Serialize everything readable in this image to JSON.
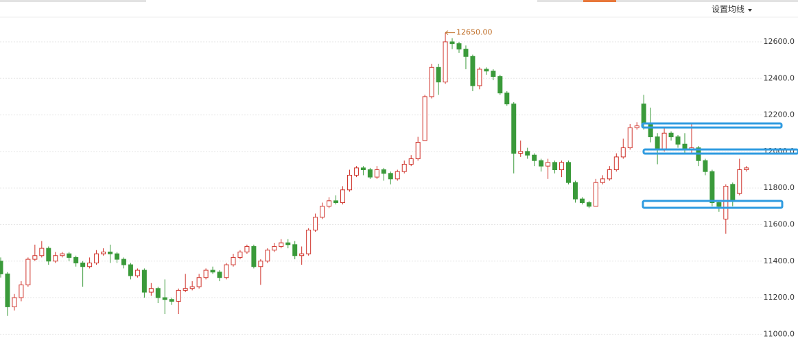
{
  "chart_data": {
    "type": "candlestick",
    "button": "设置均线",
    "max_label": "12650.00",
    "up_color": "#d0342c",
    "down_color": "#3a9a3a",
    "ylim": [
      10930,
      12735
    ],
    "yticks": [
      {
        "value": 11000,
        "label": "11000.0"
      },
      {
        "value": 11200,
        "label": "11200.0"
      },
      {
        "value": 11400,
        "label": "11400.0"
      },
      {
        "value": 11600,
        "label": "11600.0"
      },
      {
        "value": 11800,
        "label": "11800.0"
      },
      {
        "value": 12000,
        "label": "12000.0"
      },
      {
        "value": 12200,
        "label": "12200.0"
      },
      {
        "value": 12400,
        "label": "12400.0"
      },
      {
        "value": 12600,
        "label": "12600.0"
      }
    ],
    "grid": true,
    "open": [
      11400,
      11330,
      11150,
      11200,
      11270,
      11410,
      11430,
      11470,
      11400,
      11430,
      11440,
      11420,
      11390,
      11370,
      11390,
      11440,
      11450,
      11440,
      11410,
      11380,
      11320,
      11350,
      11230,
      11250,
      11200,
      11190,
      11180,
      11240,
      11250,
      11260,
      11310,
      11350,
      11340,
      11310,
      11380,
      11420,
      11450,
      11480,
      11370,
      11400,
      11460,
      11480,
      11500,
      11490,
      11430,
      11440,
      11570,
      11640,
      11700,
      11730,
      11720,
      11790,
      11870,
      11910,
      11900,
      11860,
      11900,
      11880,
      11850,
      11890,
      11930,
      11960,
      12060,
      12300,
      12460,
      12380,
      12600,
      12590,
      12560,
      12520,
      12360,
      12450,
      12440,
      12410,
      12320,
      12260,
      11990,
      12000,
      11980,
      11950,
      11920,
      11940,
      11900,
      11940,
      11830,
      11740,
      11720,
      11700,
      11830,
      11850,
      11900,
      11970,
      12020,
      12130,
      12260,
      12150,
      12080,
      12010,
      12100,
      12080,
      12040,
      12010,
      12020,
      11950,
      11890,
      11720,
      11630,
      11820,
      11770,
      11900
    ],
    "close": [
      11330,
      11150,
      11200,
      11270,
      11410,
      11430,
      11470,
      11400,
      11430,
      11440,
      11420,
      11390,
      11370,
      11390,
      11440,
      11450,
      11440,
      11410,
      11380,
      11320,
      11350,
      11230,
      11250,
      11200,
      11190,
      11180,
      11240,
      11250,
      11260,
      11310,
      11350,
      11340,
      11310,
      11380,
      11420,
      11450,
      11480,
      11370,
      11400,
      11460,
      11480,
      11500,
      11490,
      11430,
      11440,
      11570,
      11640,
      11700,
      11730,
      11720,
      11790,
      11870,
      11910,
      11900,
      11860,
      11900,
      11880,
      11850,
      11890,
      11930,
      11960,
      12050,
      12300,
      12460,
      12380,
      12600,
      12590,
      12560,
      12520,
      12360,
      12450,
      12440,
      12410,
      12320,
      12260,
      11990,
      12000,
      11980,
      11950,
      11920,
      11940,
      11900,
      11940,
      11830,
      11740,
      11720,
      11700,
      11830,
      11850,
      11900,
      11970,
      12020,
      12130,
      12140,
      12150,
      12080,
      12010,
      12100,
      12080,
      12040,
      12010,
      12020,
      11950,
      11890,
      11720,
      11700,
      11810,
      11730,
      11900,
      11910
    ],
    "high": [
      11420,
      11340,
      11220,
      11290,
      11420,
      11490,
      11510,
      11480,
      11450,
      11450,
      11450,
      11430,
      11400,
      11420,
      11460,
      11470,
      11490,
      11450,
      11420,
      11390,
      11360,
      11360,
      11280,
      11260,
      11300,
      11200,
      11250,
      11330,
      11290,
      11330,
      11360,
      11370,
      11350,
      11390,
      11440,
      11460,
      11490,
      11490,
      11410,
      11470,
      11500,
      11520,
      11520,
      11510,
      11480,
      11580,
      11660,
      11720,
      11750,
      11760,
      11810,
      11900,
      11920,
      11920,
      11910,
      11920,
      11910,
      11890,
      11900,
      11950,
      11980,
      12080,
      12310,
      12480,
      12480,
      12650,
      12620,
      12600,
      12580,
      12530,
      12460,
      12460,
      12450,
      12420,
      12330,
      12270,
      12060,
      12020,
      11990,
      11960,
      11960,
      11950,
      11950,
      11950,
      11840,
      11750,
      11730,
      11850,
      11870,
      11920,
      11990,
      12070,
      12150,
      12160,
      12310,
      12240,
      12100,
      12130,
      12110,
      12090,
      12100,
      12150,
      12030,
      11960,
      11900,
      11730,
      11820,
      11830,
      11960,
      11920
    ],
    "low": [
      11310,
      11100,
      11130,
      11180,
      11260,
      11400,
      11420,
      11380,
      11390,
      11420,
      11400,
      11370,
      11260,
      11360,
      11380,
      11430,
      11390,
      11390,
      11360,
      11300,
      11310,
      11200,
      11210,
      11170,
      11110,
      11160,
      11110,
      11230,
      11240,
      11250,
      11300,
      11330,
      11290,
      11300,
      11370,
      11410,
      11440,
      11360,
      11270,
      11390,
      11450,
      11470,
      11470,
      11410,
      11380,
      11430,
      11560,
      11630,
      11690,
      11710,
      11710,
      11780,
      11860,
      11870,
      11850,
      11850,
      11840,
      11820,
      11840,
      11880,
      11920,
      11950,
      12060,
      12290,
      12310,
      12370,
      12560,
      12540,
      12450,
      12330,
      12340,
      12420,
      12390,
      12310,
      12250,
      11880,
      11970,
      11960,
      11920,
      11890,
      11850,
      11880,
      11860,
      11820,
      11720,
      11710,
      11690,
      11700,
      11820,
      11840,
      11890,
      11960,
      12010,
      12120,
      12120,
      12050,
      11930,
      12000,
      12060,
      12020,
      11990,
      11990,
      11920,
      11870,
      11700,
      11670,
      11550,
      11700,
      11760,
      11890
    ]
  }
}
